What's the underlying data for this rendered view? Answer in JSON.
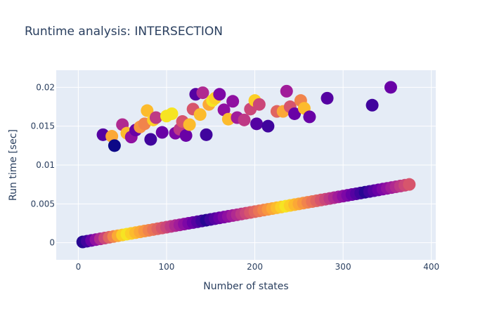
{
  "chart_data": {
    "type": "scatter",
    "title": "Runtime analysis: INTERSECTION",
    "xlabel": "Number of states",
    "ylabel": "Run time [sec]",
    "xlim": [
      -25,
      405
    ],
    "ylim": [
      -0.0022,
      0.0222
    ],
    "grid": true,
    "legend": "none",
    "x_ticks": [
      0,
      100,
      200,
      300,
      400
    ],
    "y_ticks": [
      0,
      0.005,
      0.01,
      0.015,
      0.02
    ],
    "x_tick_labels": [
      "0",
      "100",
      "200",
      "300",
      "400"
    ],
    "y_tick_labels": [
      "0",
      "0.005",
      "0.01",
      "0.015",
      "0.02"
    ],
    "colors": {
      "plot_background": "#e5ecf6",
      "gridline": "#ffffff",
      "text": "#2a3f5f",
      "colorscale": [
        "#0d0887",
        "#46039f",
        "#7201a8",
        "#9c179e",
        "#bd3786",
        "#d8576b",
        "#ed7953",
        "#fb9f3a",
        "#fdca26",
        "#f0f921"
      ]
    },
    "marker_color": "varies by point along the plasma color scale",
    "marker_size": "varies by point",
    "series": [
      {
        "x": [
          28,
          38,
          41,
          50,
          55,
          60,
          65,
          70,
          75,
          78,
          82,
          85,
          88,
          95,
          100,
          106,
          110,
          115,
          118,
          122,
          126,
          130,
          133,
          138,
          141,
          145,
          148,
          152,
          155,
          160,
          165,
          170,
          175,
          180,
          188,
          195,
          200,
          202,
          205,
          215,
          225,
          232,
          236,
          240,
          245,
          252,
          256,
          262,
          282,
          333,
          354
        ],
        "y": [
          0.0139,
          0.0137,
          0.0125,
          0.0152,
          0.0141,
          0.0136,
          0.0145,
          0.0149,
          0.0153,
          0.017,
          0.0133,
          0.0158,
          0.0161,
          0.0142,
          0.0163,
          0.0166,
          0.0141,
          0.0146,
          0.0156,
          0.0138,
          0.0152,
          0.0172,
          0.0191,
          0.0165,
          0.0193,
          0.0139,
          0.0178,
          0.0183,
          0.0186,
          0.0191,
          0.0171,
          0.0159,
          0.0182,
          0.0161,
          0.0158,
          0.0172,
          0.0183,
          0.0153,
          0.0178,
          0.015,
          0.0169,
          0.0169,
          0.0195,
          0.0175,
          0.0166,
          0.0183,
          0.0173,
          0.0162,
          0.0186,
          0.0177,
          0.02
        ],
        "color": [
          0.15,
          0.8,
          0.0,
          0.4,
          0.85,
          0.3,
          0.2,
          0.75,
          0.7,
          0.85,
          0.1,
          0.9,
          0.45,
          0.2,
          0.95,
          0.95,
          0.25,
          0.45,
          0.55,
          0.2,
          0.85,
          0.55,
          0.15,
          0.85,
          0.4,
          0.1,
          0.8,
          0.95,
          0.9,
          0.25,
          0.3,
          0.85,
          0.3,
          0.35,
          0.45,
          0.5,
          0.9,
          0.15,
          0.5,
          0.1,
          0.6,
          0.8,
          0.35,
          0.55,
          0.2,
          0.7,
          0.85,
          0.2,
          0.15,
          0.1,
          0.2
        ],
        "size": [
          18,
          18,
          18,
          18,
          18,
          18,
          18,
          18,
          18,
          18,
          18,
          18,
          18,
          18,
          18,
          18,
          18,
          18,
          18,
          18,
          18,
          18,
          18,
          18,
          18,
          18,
          18,
          18,
          18,
          18,
          18,
          18,
          18,
          18,
          18,
          18,
          18,
          18,
          18,
          18,
          18,
          18,
          18,
          18,
          18,
          18,
          18,
          18,
          18,
          18,
          18
        ]
      },
      {
        "x": [
          5,
          10,
          15,
          20,
          25,
          30,
          35,
          40,
          45,
          50,
          55,
          60,
          65,
          70,
          75,
          80,
          85,
          90,
          95,
          100,
          105,
          110,
          115,
          120,
          125,
          130,
          135,
          140,
          145,
          150,
          155,
          160,
          165,
          170,
          175,
          180,
          185,
          190,
          195,
          200,
          205,
          210,
          215,
          220,
          225,
          230,
          235,
          240,
          245,
          250,
          255,
          260,
          265,
          270,
          275,
          280,
          285,
          290,
          295,
          300,
          305,
          310,
          315,
          320,
          325,
          330,
          335,
          340,
          345,
          350,
          355,
          360,
          365,
          370,
          375
        ],
        "y": [
          0.0001,
          0.0002,
          0.0003,
          0.0004,
          0.0005,
          0.0006,
          0.0007,
          0.0008,
          0.0009,
          0.001,
          0.0011,
          0.0012,
          0.0013,
          0.0014,
          0.0015,
          0.0016,
          0.0017,
          0.0018,
          0.0019,
          0.002,
          0.0021,
          0.0022,
          0.0023,
          0.0024,
          0.0025,
          0.0026,
          0.0027,
          0.0028,
          0.0029,
          0.003,
          0.0031,
          0.0032,
          0.0033,
          0.0034,
          0.0035,
          0.0036,
          0.0037,
          0.0038,
          0.0039,
          0.004,
          0.0041,
          0.0042,
          0.0043,
          0.0044,
          0.0045,
          0.0046,
          0.0047,
          0.0048,
          0.0049,
          0.005,
          0.0051,
          0.0052,
          0.0053,
          0.0054,
          0.0055,
          0.0056,
          0.0057,
          0.0058,
          0.0059,
          0.006,
          0.0061,
          0.0062,
          0.0063,
          0.0064,
          0.0065,
          0.0066,
          0.0067,
          0.0068,
          0.0069,
          0.007,
          0.0071,
          0.0072,
          0.0073,
          0.0074,
          0.0075
        ],
        "color": [
          0.05,
          0.1,
          0.2,
          0.3,
          0.4,
          0.5,
          0.6,
          0.7,
          0.8,
          0.9,
          0.95,
          0.9,
          0.85,
          0.8,
          0.75,
          0.7,
          0.65,
          0.6,
          0.55,
          0.5,
          0.45,
          0.4,
          0.35,
          0.3,
          0.25,
          0.2,
          0.15,
          0.1,
          0.05,
          0.1,
          0.15,
          0.2,
          0.25,
          0.3,
          0.35,
          0.4,
          0.45,
          0.5,
          0.55,
          0.6,
          0.65,
          0.7,
          0.75,
          0.8,
          0.85,
          0.9,
          0.95,
          0.9,
          0.85,
          0.8,
          0.75,
          0.7,
          0.65,
          0.6,
          0.55,
          0.5,
          0.45,
          0.4,
          0.35,
          0.3,
          0.25,
          0.2,
          0.15,
          0.1,
          0.05,
          0.1,
          0.15,
          0.2,
          0.25,
          0.3,
          0.35,
          0.4,
          0.45,
          0.5,
          0.55
        ],
        "size": [
          18,
          18,
          18,
          18,
          18,
          18,
          18,
          18,
          18,
          18,
          18,
          18,
          18,
          18,
          18,
          18,
          18,
          18,
          18,
          18,
          18,
          18,
          18,
          18,
          18,
          18,
          18,
          18,
          18,
          18,
          18,
          18,
          18,
          18,
          18,
          18,
          18,
          18,
          18,
          18,
          18,
          18,
          18,
          18,
          18,
          18,
          18,
          18,
          18,
          18,
          18,
          18,
          18,
          18,
          18,
          18,
          18,
          18,
          18,
          18,
          18,
          18,
          18,
          18,
          18,
          18,
          18,
          18,
          18,
          18,
          18,
          18,
          18,
          18,
          18
        ]
      }
    ]
  }
}
